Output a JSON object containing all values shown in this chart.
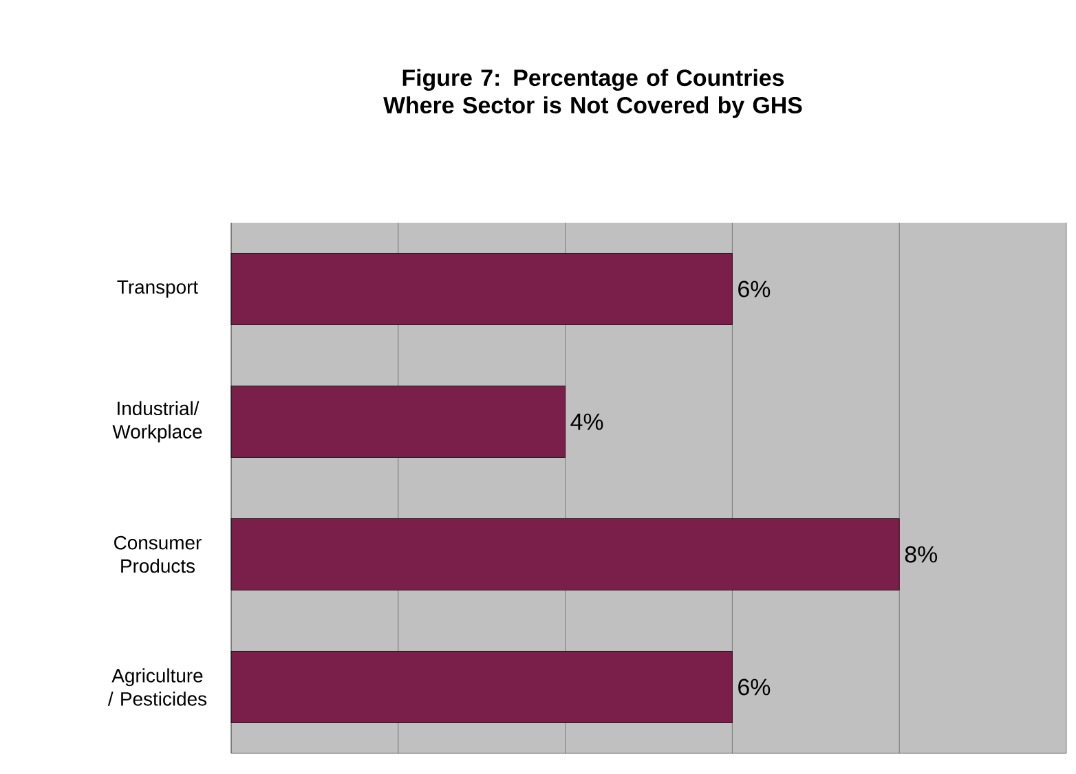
{
  "chart_data": {
    "type": "bar",
    "orientation": "horizontal",
    "title": "Figure 7: Percentage of Countries Where Sector is Not Covered by GHS",
    "categories": [
      "Transport",
      "Industrial/ Workplace",
      "Consumer Products",
      "Agriculture / Pesticides"
    ],
    "values": [
      6,
      4,
      8,
      6
    ],
    "value_labels": [
      "6%",
      "4%",
      "8%",
      "6%"
    ],
    "color": "#7a1f4a",
    "xlim": [
      0,
      10
    ],
    "xticks": [
      {
        "value": 0,
        "label": null
      },
      {
        "value": 2,
        "label": null
      },
      {
        "value": 4,
        "label": null
      },
      {
        "value": 6,
        "label": null
      },
      {
        "value": 8,
        "label": null
      },
      {
        "value": 10,
        "label": null
      }
    ],
    "grid": "x",
    "tick_labels": "y"
  }
}
